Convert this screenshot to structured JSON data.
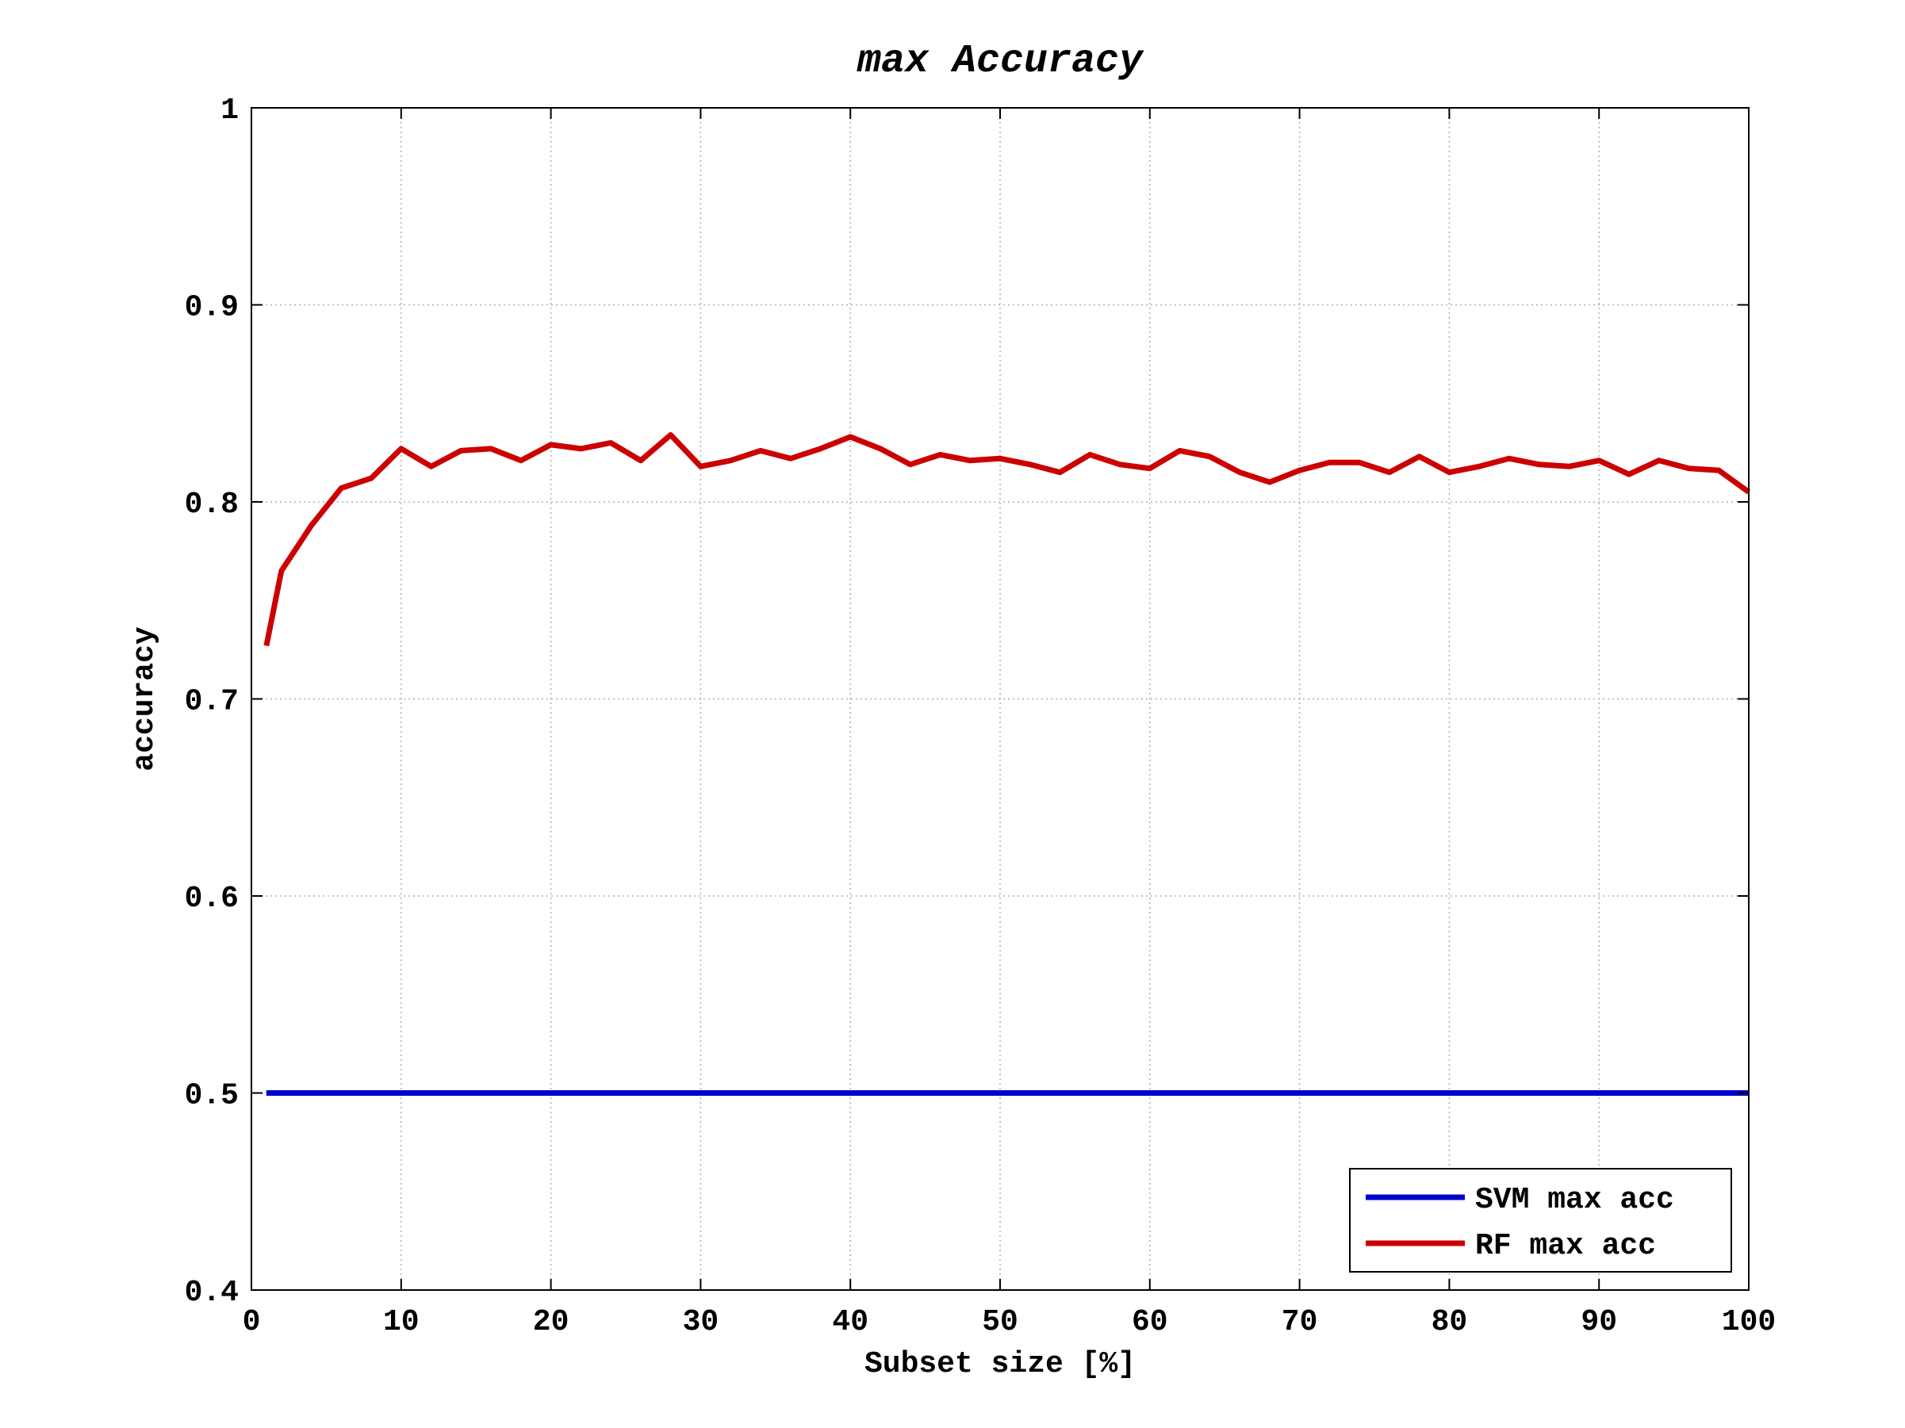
{
  "chart_data": {
    "type": "line",
    "title": "max Accuracy",
    "xlabel": "Subset size [%]",
    "ylabel": "accuracy",
    "xlim": [
      0,
      100
    ],
    "ylim": [
      0.4,
      1.0
    ],
    "xticks": [
      0,
      10,
      20,
      30,
      40,
      50,
      60,
      70,
      80,
      90,
      100
    ],
    "xtick_labels": [
      "0",
      "10",
      "20",
      "30",
      "40",
      "50",
      "60",
      "70",
      "80",
      "90",
      "100"
    ],
    "yticks": [
      0.4,
      0.5,
      0.6,
      0.7,
      0.8,
      0.9,
      1.0
    ],
    "ytick_labels": [
      "0.4",
      "0.5",
      "0.6",
      "0.7",
      "0.8",
      "0.9",
      "1"
    ],
    "grid": true,
    "legend_position": "bottom-right",
    "x": [
      1,
      2,
      4,
      6,
      8,
      10,
      12,
      14,
      16,
      18,
      20,
      22,
      24,
      26,
      28,
      30,
      32,
      34,
      36,
      38,
      40,
      42,
      44,
      46,
      48,
      50,
      52,
      54,
      56,
      58,
      60,
      62,
      64,
      66,
      68,
      70,
      72,
      74,
      76,
      78,
      80,
      82,
      84,
      86,
      88,
      90,
      92,
      94,
      96,
      98,
      100
    ],
    "series": [
      {
        "name": "SVM max acc",
        "color": "#0000cc",
        "values": [
          0.5,
          0.5,
          0.5,
          0.5,
          0.5,
          0.5,
          0.5,
          0.5,
          0.5,
          0.5,
          0.5,
          0.5,
          0.5,
          0.5,
          0.5,
          0.5,
          0.5,
          0.5,
          0.5,
          0.5,
          0.5,
          0.5,
          0.5,
          0.5,
          0.5,
          0.5,
          0.5,
          0.5,
          0.5,
          0.5,
          0.5,
          0.5,
          0.5,
          0.5,
          0.5,
          0.5,
          0.5,
          0.5,
          0.5,
          0.5,
          0.5,
          0.5,
          0.5,
          0.5,
          0.5,
          0.5,
          0.5,
          0.5,
          0.5,
          0.5,
          0.5
        ]
      },
      {
        "name": "RF max acc",
        "color": "#cc0000",
        "values": [
          0.727,
          0.765,
          0.788,
          0.807,
          0.812,
          0.827,
          0.818,
          0.826,
          0.827,
          0.821,
          0.829,
          0.827,
          0.83,
          0.821,
          0.834,
          0.818,
          0.821,
          0.826,
          0.822,
          0.827,
          0.833,
          0.827,
          0.819,
          0.824,
          0.821,
          0.822,
          0.819,
          0.815,
          0.824,
          0.819,
          0.817,
          0.826,
          0.823,
          0.815,
          0.81,
          0.816,
          0.82,
          0.82,
          0.815,
          0.823,
          0.815,
          0.818,
          0.822,
          0.819,
          0.818,
          0.821,
          0.814,
          0.821,
          0.817,
          0.816,
          0.805
        ]
      }
    ]
  }
}
